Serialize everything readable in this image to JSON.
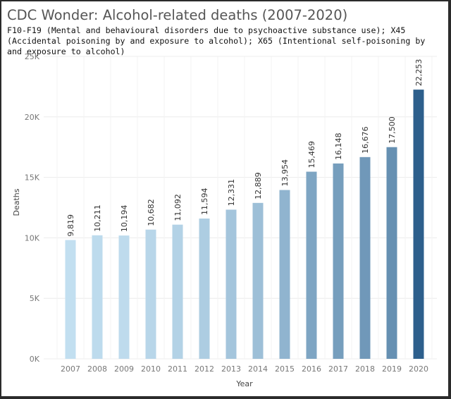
{
  "chart_data": {
    "type": "bar",
    "title": "CDC Wonder: Alcohol-related deaths (2007-2020)",
    "subtitle": "F10-F19 (Mental and behavioural disorders due to psychoactive substance use); X45 (Accidental poisoning by and exposure to alcohol); X65 (Intentional self-poisoning by and exposure to alcohol)",
    "xlabel": "Year",
    "ylabel": "Deaths",
    "categories": [
      "2007",
      "2008",
      "2009",
      "2010",
      "2011",
      "2012",
      "2013",
      "2014",
      "2015",
      "2016",
      "2017",
      "2018",
      "2019",
      "2020"
    ],
    "values": [
      9819,
      10211,
      10194,
      10682,
      11092,
      11594,
      12331,
      12889,
      13954,
      15469,
      16148,
      16676,
      17500,
      22253
    ],
    "value_labels": [
      "9,819",
      "10,211",
      "10,194",
      "10,682",
      "11,092",
      "11,594",
      "12,331",
      "12,889",
      "13,954",
      "15,469",
      "16,148",
      "16,676",
      "17,500",
      "22,253"
    ],
    "ylim": [
      0,
      25000
    ],
    "yticks": [
      0,
      5000,
      10000,
      15000,
      20000,
      25000
    ],
    "ytick_labels": [
      "0K",
      "5K",
      "10K",
      "15K",
      "20K",
      "25K"
    ],
    "grid": true,
    "color_scale": {
      "low": "#c2dff0",
      "high": "#2d5f8c"
    }
  }
}
